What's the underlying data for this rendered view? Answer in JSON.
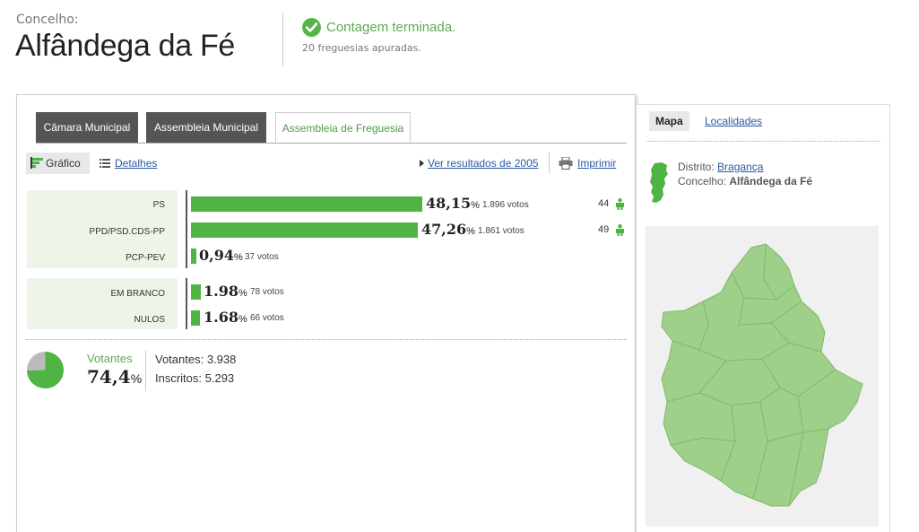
{
  "header": {
    "label": "Concelho:",
    "title": "Alfândega da Fé",
    "status": "Contagem terminada.",
    "status_sub": "20 freguesias apuradas."
  },
  "tabs": [
    {
      "label": "Câmara Municipal"
    },
    {
      "label": "Assembleia Municipal"
    },
    {
      "label": "Assembleia de Freguesia",
      "active": true
    }
  ],
  "toolbar": {
    "grafico": "Gráfico",
    "detalhes": "Detalhes",
    "ver_resultados": "Ver resultados de 2005",
    "imprimir": "Imprimir"
  },
  "results": [
    {
      "party": "PS",
      "pct": "48,15",
      "sign": "%",
      "votes": "1.896 votos",
      "seats": "44",
      "fraction": 0.4815
    },
    {
      "party": "PPD/PSD.CDS-PP",
      "pct": "47,26",
      "sign": "%",
      "votes": "1.861 votos",
      "seats": "49",
      "fraction": 0.4726
    },
    {
      "party": "PCP-PEV",
      "pct": "0,94",
      "sign": "%",
      "votes": "37 votos",
      "fraction": 0.0094
    }
  ],
  "blank_null": [
    {
      "party": "EM BRANCO",
      "pct": "1.98",
      "sign": "%",
      "votes": "78 votos",
      "fraction": 0.0198
    },
    {
      "party": "NULOS",
      "pct": "1.68",
      "sign": "%",
      "votes": "66 votos",
      "fraction": 0.0168
    }
  ],
  "turnout": {
    "label": "Votantes",
    "pct": "74,4",
    "sign": "%",
    "votantes": "Votantes: 3.938",
    "inscritos": "Inscritos: 5.293",
    "fraction": 0.744
  },
  "side": {
    "tab_mapa": "Mapa",
    "tab_localidades": "Localidades",
    "distrito_label": "Distrito:",
    "distrito_value": "Bragança",
    "concelho_label": "Concelho:",
    "concelho_value": "Alfândega da Fé"
  },
  "colors": {
    "accent": "#4fb444",
    "map_fill": "#9fd08a",
    "tab_dark": "#555555"
  }
}
